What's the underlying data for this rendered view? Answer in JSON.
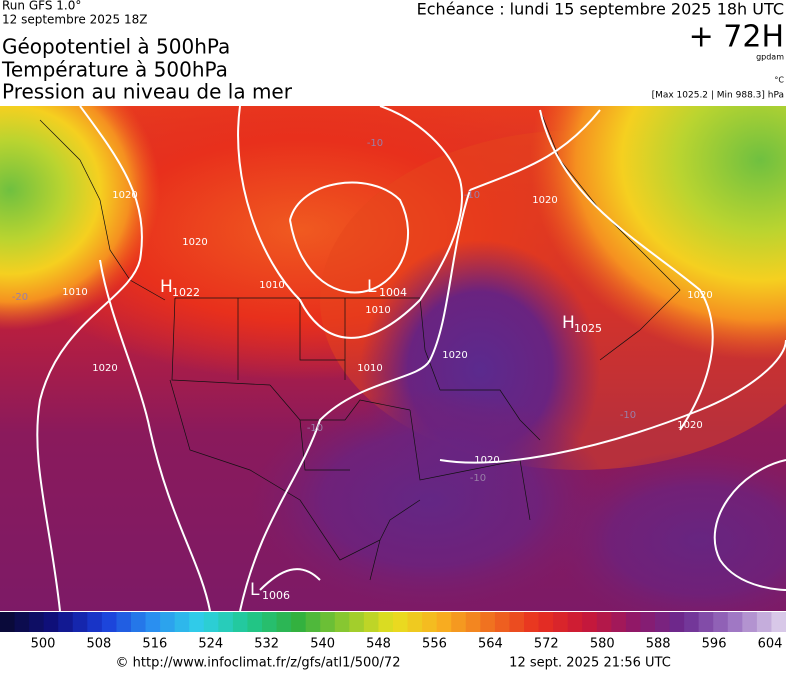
{
  "header": {
    "run": "Run GFS 1.0°",
    "run_date": "12 septembre 2025 18Z",
    "titles": [
      "Géopotentiel à 500hPa",
      "Température à 500hPa",
      "Pression au niveau de la mer"
    ],
    "valid": "Echéance : lundi 15 septembre 2025 18h UTC",
    "lead": "+ 72H",
    "unit_geo": "gpdam",
    "unit_temp": "°C",
    "extremes": "[Max 1025.2 | Min 988.3] hPa"
  },
  "map": {
    "centers": [
      {
        "type": "H",
        "value": 1022
      },
      {
        "type": "L",
        "value": 1004
      },
      {
        "type": "H",
        "value": 1025
      },
      {
        "type": "L",
        "value": 1006
      }
    ],
    "isobar_labels": [
      1020,
      1020,
      1010,
      1010,
      1020,
      1020,
      1020,
      1020,
      1020,
      1020,
      1010,
      1010
    ],
    "temp_labels": [
      -20,
      -10,
      -10,
      -10,
      -10,
      -10
    ]
  },
  "colorbar": {
    "ticks": [
      500,
      508,
      516,
      524,
      532,
      540,
      548,
      556,
      564,
      572,
      580,
      588,
      596,
      604
    ]
  },
  "footer": {
    "url": "© http://www.infoclimat.fr/z/gfs/atl1/500/72",
    "generated": "12 sept. 2025 21:56 UTC"
  }
}
